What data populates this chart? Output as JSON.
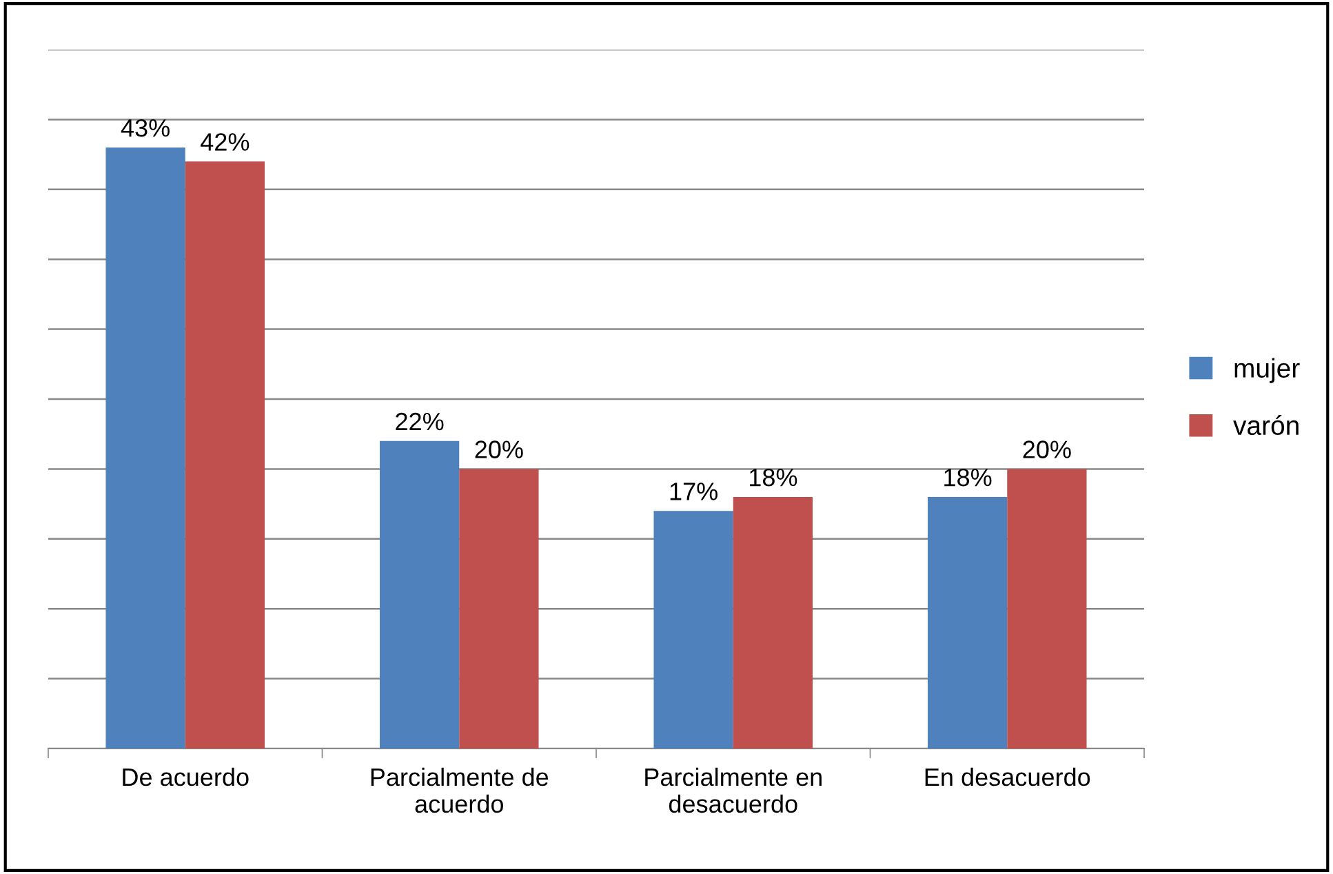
{
  "chart_data": {
    "type": "bar",
    "categories": [
      "De acuerdo",
      "Parcialmente de\nacuerdo",
      "Parcialmente en\ndesacuerdo",
      "En desacuerdo"
    ],
    "series": [
      {
        "name": "mujer",
        "color": "#4f81bd",
        "values": [
          43,
          22,
          17,
          18
        ],
        "value_labels": [
          "43%",
          "22%",
          "17%",
          "18%"
        ]
      },
      {
        "name": "varón",
        "color": "#c0504d",
        "values": [
          42,
          20,
          18,
          20
        ],
        "value_labels": [
          "42%",
          "20%",
          "18%",
          "20%"
        ]
      }
    ],
    "ylim": [
      0,
      50
    ],
    "yticks": [
      {
        "value": 0,
        "label": null
      },
      {
        "value": 5,
        "label": null
      },
      {
        "value": 10,
        "label": null
      },
      {
        "value": 15,
        "label": null
      },
      {
        "value": 20,
        "label": null
      },
      {
        "value": 25,
        "label": null
      },
      {
        "value": 30,
        "label": null
      },
      {
        "value": 35,
        "label": null
      },
      {
        "value": 40,
        "label": null
      },
      {
        "value": 45,
        "label": null
      },
      {
        "value": 50,
        "label": null
      }
    ],
    "tick_labels": "x",
    "grid": "y",
    "legend": "right"
  }
}
